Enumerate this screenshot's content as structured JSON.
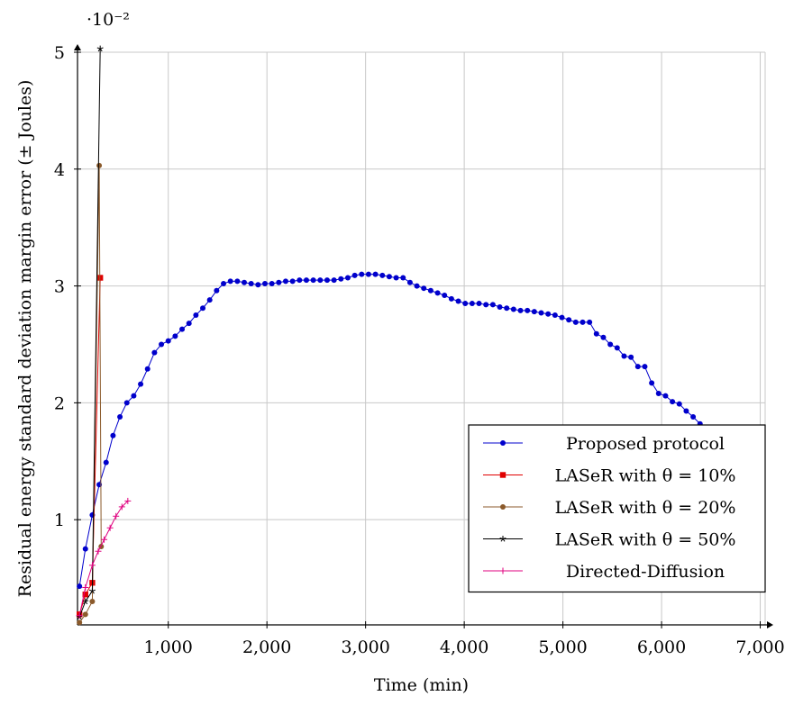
{
  "chart_data": {
    "type": "line",
    "xlabel": "Time (min)",
    "ylabel": "Residual energy standard deviation margin error (± Joules)",
    "y_scale_label": "·10⁻²",
    "xlim": [
      80,
      7050
    ],
    "ylim": [
      0.1,
      5.0
    ],
    "x_ticks": [
      1000,
      2000,
      3000,
      4000,
      5000,
      6000,
      7000
    ],
    "x_tick_labels": [
      "1,000",
      "2,000",
      "3,000",
      "4,000",
      "5,000",
      "6,000",
      "7,000"
    ],
    "y_ticks": [
      1,
      2,
      3,
      4,
      5
    ],
    "y_tick_labels": [
      "1",
      "2",
      "3",
      "4",
      "5"
    ],
    "grid": true,
    "legend_position": "bottom-right",
    "series": [
      {
        "name": "Proposed protocol",
        "legend_label": "Proposed protocol",
        "color": "#0000cc",
        "marker": "circle",
        "x": [
          100,
          160,
          230,
          300,
          370,
          440,
          510,
          580,
          650,
          720,
          790,
          860,
          930,
          1000,
          1070,
          1140,
          1210,
          1280,
          1350,
          1420,
          1490,
          1560,
          1630,
          1700,
          1770,
          1840,
          1910,
          1980,
          2050,
          2120,
          2190,
          2260,
          2330,
          2400,
          2470,
          2540,
          2610,
          2680,
          2750,
          2820,
          2890,
          2960,
          3030,
          3100,
          3170,
          3240,
          3310,
          3380,
          3450,
          3520,
          3590,
          3660,
          3730,
          3800,
          3870,
          3940,
          4010,
          4080,
          4150,
          4220,
          4290,
          4360,
          4430,
          4500,
          4570,
          4640,
          4710,
          4780,
          4850,
          4920,
          4990,
          5060,
          5130,
          5200,
          5270,
          5340,
          5410,
          5480,
          5550,
          5620,
          5690,
          5760,
          5830,
          5900,
          5970,
          6040,
          6110,
          6180,
          6250,
          6320,
          6390,
          6460,
          6530,
          6600,
          6670,
          6740,
          6810,
          6880,
          6950,
          7020
        ],
        "values": [
          0.43,
          0.75,
          1.04,
          1.3,
          1.49,
          1.72,
          1.88,
          2.0,
          2.06,
          2.16,
          2.29,
          2.43,
          2.5,
          2.53,
          2.57,
          2.63,
          2.68,
          2.75,
          2.81,
          2.88,
          2.96,
          3.02,
          3.04,
          3.04,
          3.03,
          3.02,
          3.01,
          3.02,
          3.02,
          3.03,
          3.04,
          3.04,
          3.05,
          3.05,
          3.05,
          3.05,
          3.05,
          3.05,
          3.06,
          3.07,
          3.09,
          3.1,
          3.1,
          3.1,
          3.09,
          3.08,
          3.07,
          3.07,
          3.03,
          3.0,
          2.98,
          2.96,
          2.94,
          2.92,
          2.89,
          2.87,
          2.85,
          2.85,
          2.85,
          2.84,
          2.84,
          2.82,
          2.81,
          2.8,
          2.79,
          2.79,
          2.78,
          2.77,
          2.76,
          2.75,
          2.73,
          2.71,
          2.69,
          2.69,
          2.69,
          2.59,
          2.56,
          2.5,
          2.47,
          2.4,
          2.39,
          2.31,
          2.31,
          2.17,
          2.08,
          2.06,
          2.01,
          1.99,
          1.93,
          1.88,
          1.82,
          1.79,
          1.76,
          1.76,
          1.75,
          1.75,
          1.75,
          1.75,
          1.75,
          1.74
        ]
      },
      {
        "name": "LASeR with θ = 10%",
        "legend_label": "LASeR with θ = 10%",
        "color": "#e00000",
        "marker": "square",
        "x": [
          100,
          160,
          230,
          310
        ],
        "values": [
          0.19,
          0.36,
          0.46,
          3.07
        ]
      },
      {
        "name": "LASeR with θ = 20%",
        "legend_label": "LASeR with θ = 20%",
        "color": "#8b5a2b",
        "marker": "circle",
        "x": [
          100,
          160,
          230,
          300,
          320
        ],
        "values": [
          0.12,
          0.19,
          0.3,
          4.03,
          0.77
        ]
      },
      {
        "name": "LASeR with θ = 50%",
        "legend_label": "LASeR with θ = 50%",
        "color": "#000000",
        "marker": "star",
        "x": [
          100,
          160,
          230,
          310
        ],
        "values": [
          0.17,
          0.3,
          0.39,
          5.03
        ]
      },
      {
        "name": "Directed-Diffusion",
        "legend_label": "Directed-Diffusion",
        "color": "#e0007f",
        "marker": "plus",
        "x": [
          100,
          160,
          230,
          290,
          350,
          410,
          470,
          530,
          590
        ],
        "values": [
          0.18,
          0.42,
          0.61,
          0.73,
          0.83,
          0.93,
          1.03,
          1.11,
          1.16
        ]
      }
    ]
  }
}
